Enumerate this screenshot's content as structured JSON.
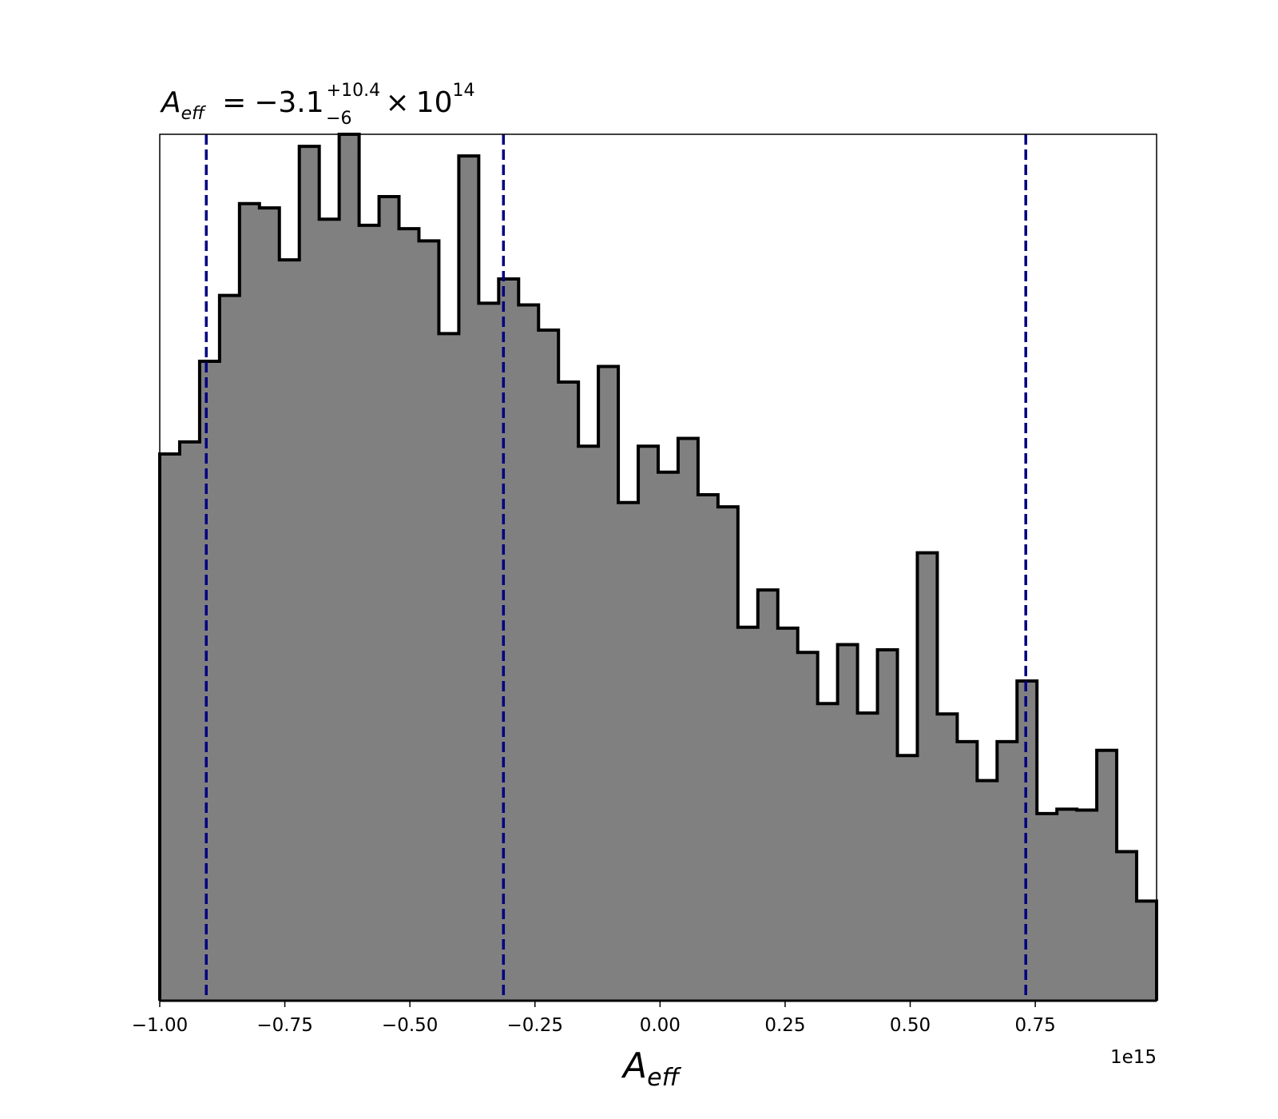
{
  "chart_data": {
    "type": "histogram",
    "title": {
      "symbol": "A",
      "symbol_subscript": "eff",
      "equals": "=",
      "median": "−3.1",
      "upper_error": "+10.4",
      "lower_error": "−6",
      "times": "×",
      "multiplier_base": "10",
      "multiplier_exponent": "14"
    },
    "xlabel": {
      "symbol": "A",
      "subscript": "eff"
    },
    "ylabel": "",
    "x_offset_label": "1e15",
    "xlim": [
      -1.0,
      0.9925
    ],
    "ylim": [
      0,
      1.0
    ],
    "y_axis_visible": false,
    "grid": false,
    "x_ticks": [
      -1.0,
      -0.75,
      -0.5,
      -0.25,
      0.0,
      0.25,
      0.5,
      0.75
    ],
    "x_tick_labels": [
      "−1.00",
      "−0.75",
      "−0.50",
      "−0.25",
      "0.00",
      "0.25",
      "0.50",
      "0.75"
    ],
    "bin_start": -1.0,
    "bin_width": 0.03985,
    "counts": [
      0.631,
      0.645,
      0.738,
      0.814,
      0.92,
      0.915,
      0.855,
      0.986,
      0.902,
      1.0,
      0.895,
      0.928,
      0.891,
      0.877,
      0.77,
      0.975,
      0.805,
      0.833,
      0.803,
      0.774,
      0.714,
      0.64,
      0.732,
      0.575,
      0.64,
      0.61,
      0.649,
      0.584,
      0.57,
      0.431,
      0.474,
      0.43,
      0.402,
      0.343,
      0.411,
      0.332,
      0.405,
      0.283,
      0.517,
      0.331,
      0.299,
      0.254,
      0.299,
      0.369,
      0.216,
      0.221,
      0.22,
      0.289,
      0.172,
      0.115
    ],
    "fill_color": "#808080",
    "edge_color": "#000000",
    "quantile_lines": [
      -0.907,
      -0.313,
      0.731
    ],
    "quantile_line_color": "#000080"
  }
}
